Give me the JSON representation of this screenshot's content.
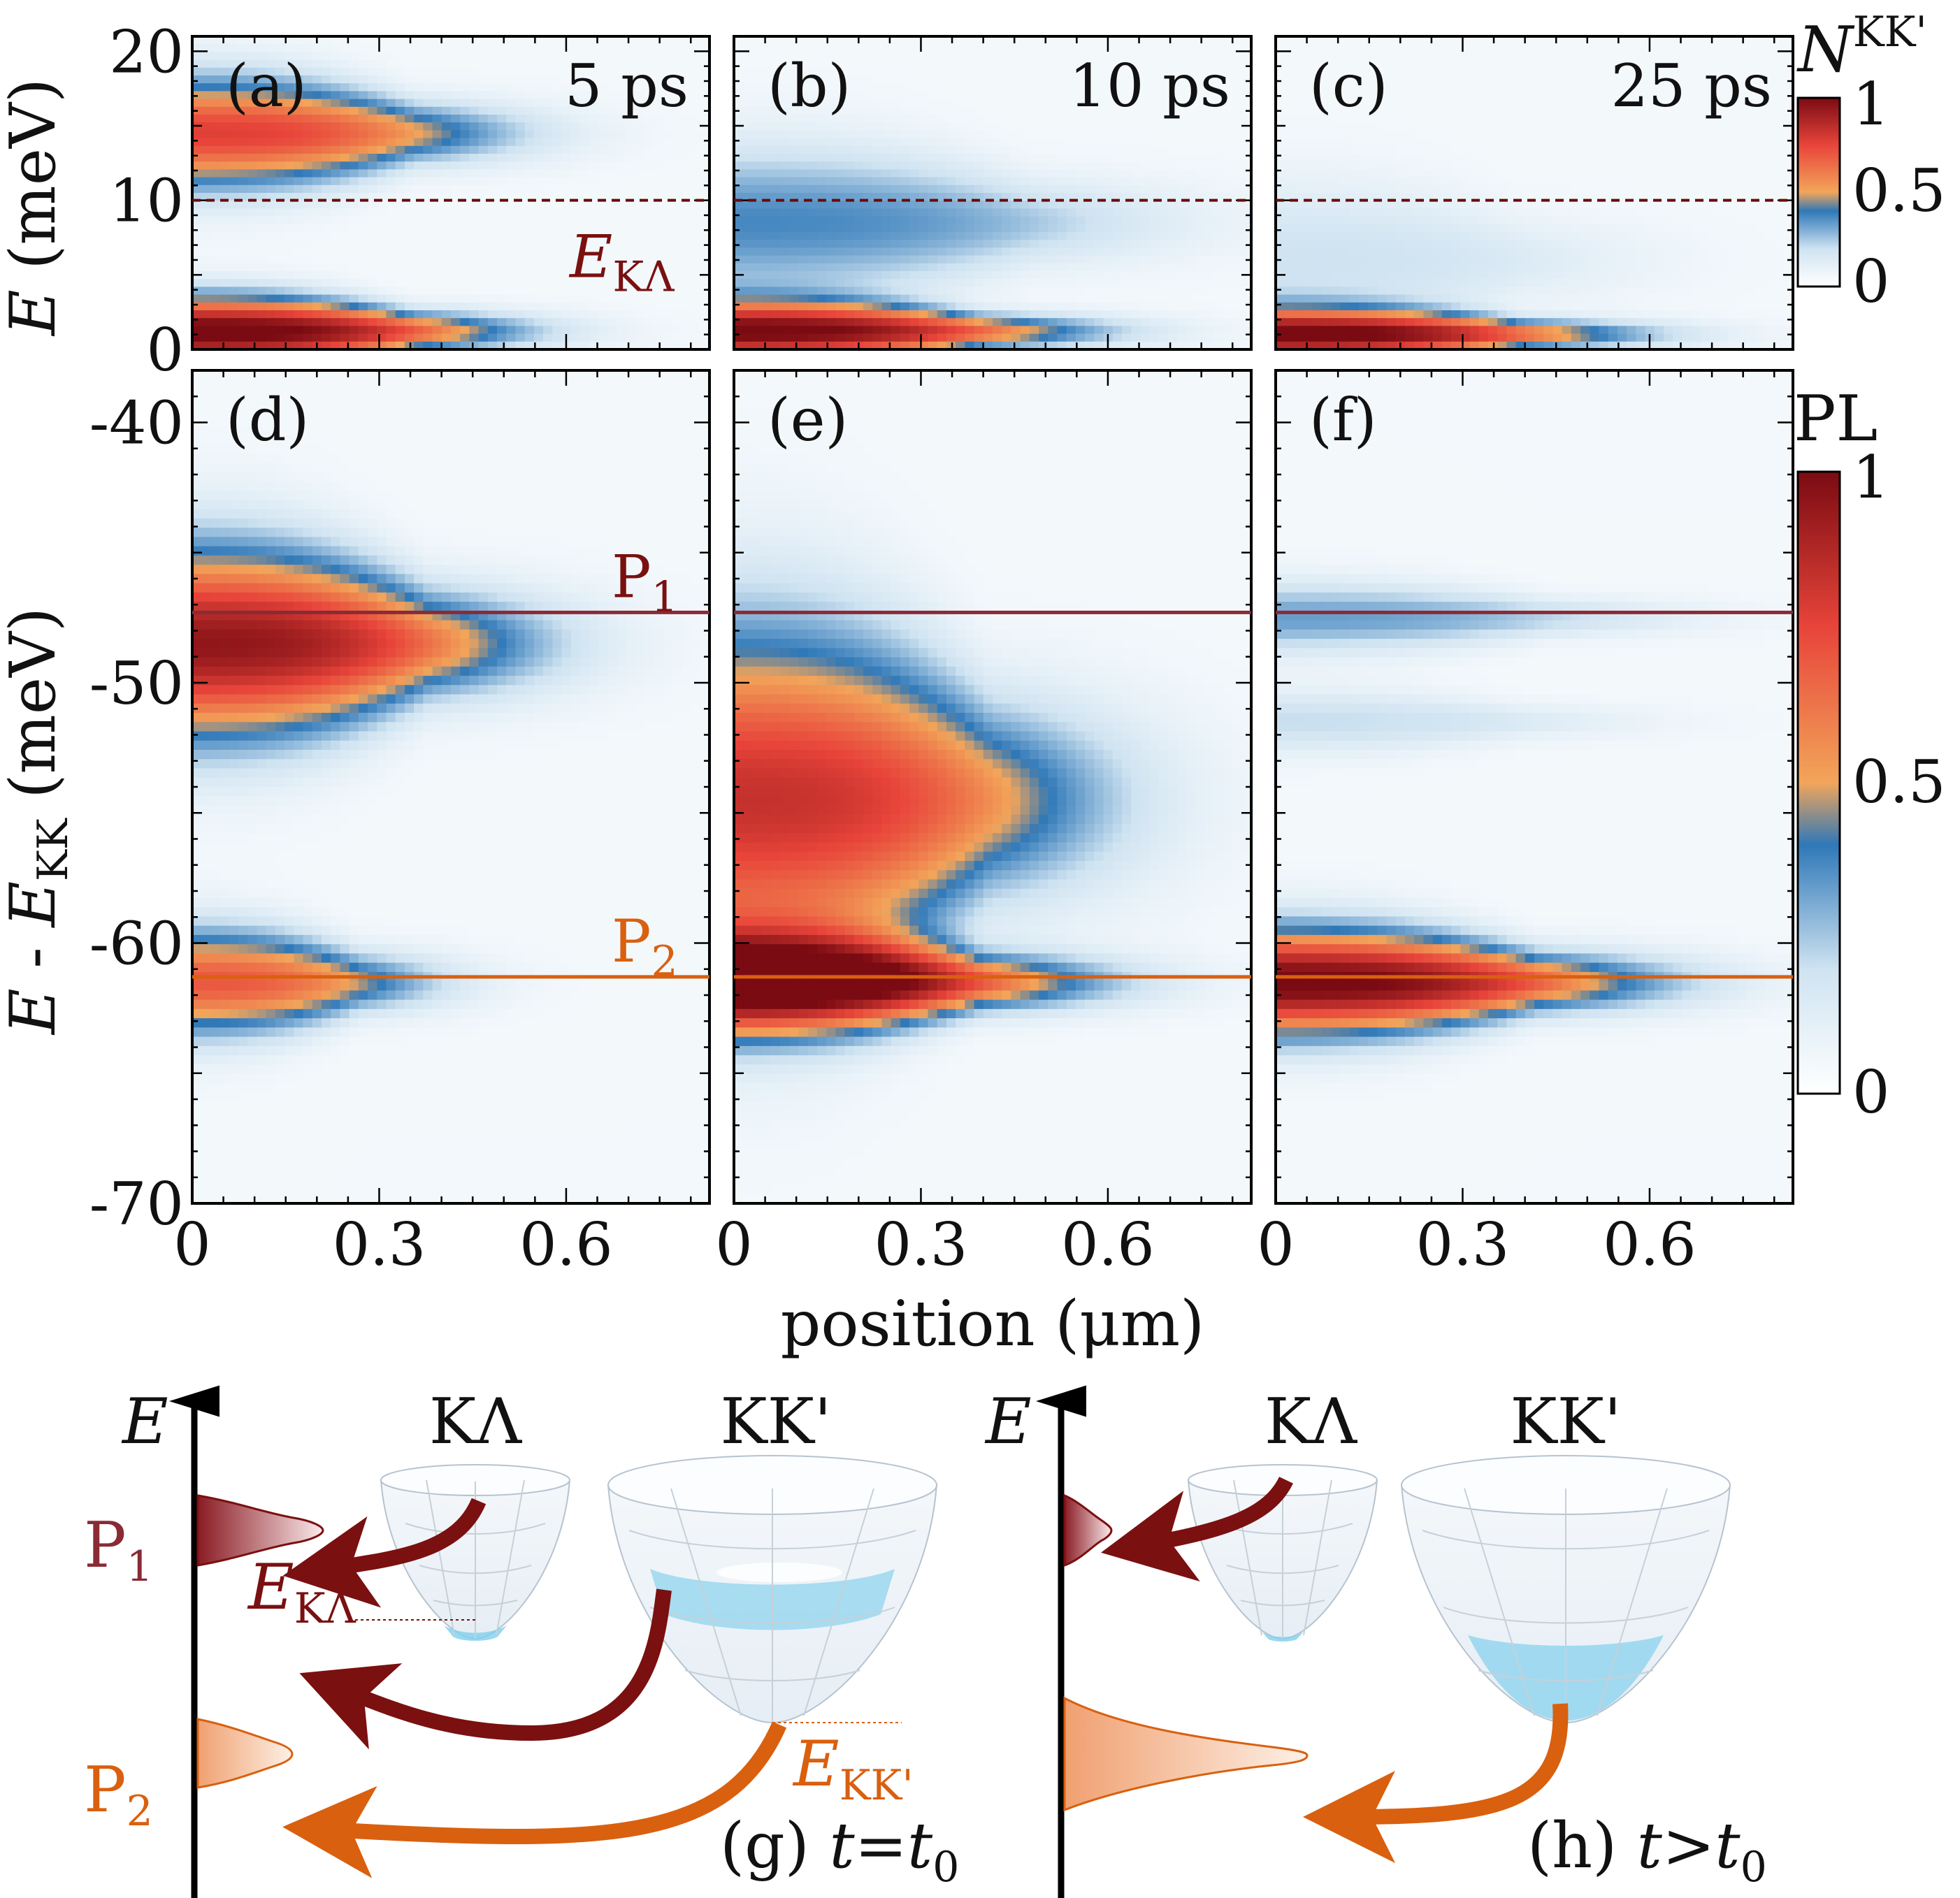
{
  "colors": {
    "dark_red": "#7a1010",
    "orange": "#d9600f",
    "ek_line": "#6b0a0a"
  },
  "colormap": [
    "#ffffff",
    "#cfe3f1",
    "#2f78b8",
    "#f2a55a",
    "#e8443a",
    "#7a0b12"
  ],
  "chart_data": [
    {
      "type": "heatmap",
      "panel": "(a)",
      "time_label": "5 ps",
      "ylabel": "E (meV)",
      "xlim": [
        0,
        0.83
      ],
      "ylim": [
        0,
        21
      ],
      "y_ticks": [
        "0",
        "10",
        "20"
      ],
      "y_tick_values": [
        0,
        10,
        20
      ],
      "reference_line": {
        "label": "E",
        "label_sub": "KΛ",
        "y": 10
      },
      "blobs": [
        {
          "y": 14.5,
          "x_extent": 0.45,
          "peak": 0.72,
          "y_width": 3.6
        },
        {
          "y": 1.2,
          "x_extent": 0.45,
          "peak": 1.0,
          "y_width": 2.3
        }
      ]
    },
    {
      "type": "heatmap",
      "panel": "(b)",
      "time_label": "10 ps",
      "xlim": [
        0,
        0.83
      ],
      "ylim": [
        0,
        21
      ],
      "reference_line": {
        "y": 10
      },
      "blobs": [
        {
          "y": 8.5,
          "x_extent": 0.6,
          "peak": 0.32,
          "y_width": 5
        },
        {
          "y": 1.2,
          "x_extent": 0.5,
          "peak": 0.95,
          "y_width": 2.0
        }
      ]
    },
    {
      "type": "heatmap",
      "panel": "(c)",
      "time_label": "25 ps",
      "xlim": [
        0,
        0.83
      ],
      "ylim": [
        0,
        21
      ],
      "reference_line": {
        "y": 10
      },
      "blobs": [
        {
          "y": 6,
          "x_extent": 0.5,
          "peak": 0.15,
          "y_width": 5
        },
        {
          "y": 1.0,
          "x_extent": 0.5,
          "peak": 0.95,
          "y_width": 1.7
        }
      ]
    },
    {
      "type": "heatmap",
      "panel": "(d)",
      "xlabel": "",
      "xlim": [
        0,
        0.83
      ],
      "ylim": [
        -70,
        -38
      ],
      "y_ticks": [
        "-40",
        "-50",
        "-60",
        "-70"
      ],
      "y_tick_values": [
        -40,
        -50,
        -60,
        -70
      ],
      "x_ticks": [
        "0",
        "0.3",
        "0.6"
      ],
      "x_tick_values": [
        0,
        0.3,
        0.6
      ],
      "lines": [
        {
          "label": "P",
          "label_sub": "1",
          "y": -47.3
        },
        {
          "label": "P",
          "label_sub": "2",
          "y": -61.3
        }
      ],
      "blobs": [
        {
          "y": -48.5,
          "x_extent": 0.48,
          "peak": 0.9,
          "y_width": 3.6
        },
        {
          "y": -61.5,
          "x_extent": 0.34,
          "peak": 0.65,
          "y_width": 2.0
        }
      ]
    },
    {
      "type": "heatmap",
      "panel": "(e)",
      "xlim": [
        0,
        0.83
      ],
      "ylim": [
        -70,
        -38
      ],
      "x_ticks": [
        "0",
        "0.3",
        "0.6"
      ],
      "x_tick_values": [
        0,
        0.3,
        0.6
      ],
      "blobs": [
        {
          "y": -54.5,
          "x_extent": 0.52,
          "peak": 0.78,
          "y_width": 6.5
        },
        {
          "y": -61.5,
          "x_extent": 0.5,
          "peak": 1.0,
          "y_width": 1.9
        }
      ]
    },
    {
      "type": "heatmap",
      "panel": "(f)",
      "xlim": [
        0,
        0.83
      ],
      "ylim": [
        -70,
        -38
      ],
      "x_ticks": [
        "0",
        "0.3",
        "0.6"
      ],
      "x_tick_values": [
        0,
        0.3,
        0.6
      ],
      "blobs": [
        {
          "y": -47.5,
          "x_extent": 0.55,
          "peak": 0.28,
          "y_width": 1.3
        },
        {
          "y": -51.5,
          "x_extent": 0.5,
          "peak": 0.16,
          "y_width": 1.2
        },
        {
          "y": -61.5,
          "x_extent": 0.53,
          "peak": 0.98,
          "y_width": 2.0
        }
      ]
    }
  ],
  "labels": {
    "ylabel_top": "(meV)",
    "ylabel_top_var": "E",
    "ylabel_bottom_var": "E",
    "ylabel_bottom_mid": " - ",
    "ylabel_bottom_sub": "KK",
    "ylabel_bottom_unit": "(meV)",
    "xlabel": "position (μm)",
    "colorbar_top_title": "N",
    "colorbar_top_sup": "KK'",
    "colorbar_bottom_title": "PL",
    "colorbar_ticks": [
      "1",
      "0.5",
      "0"
    ]
  },
  "schematic": {
    "g": {
      "caption_pre": "(g) ",
      "caption_var": "t",
      "caption_eq": "=",
      "caption_var2": "t",
      "caption_sub": "0"
    },
    "h": {
      "caption_pre": "(h) ",
      "caption_var": "t",
      "caption_eq": ">",
      "caption_var2": "t",
      "caption_sub": "0"
    },
    "axis_label": "E",
    "valley_kl": "KΛ",
    "valley_kk": "KK'",
    "e_kl": "E",
    "e_kl_sub": "KΛ",
    "e_kk": "E",
    "e_kk_sub": "KK'",
    "p1": "P",
    "p1_sub": "1",
    "p2": "P",
    "p2_sub": "2"
  }
}
